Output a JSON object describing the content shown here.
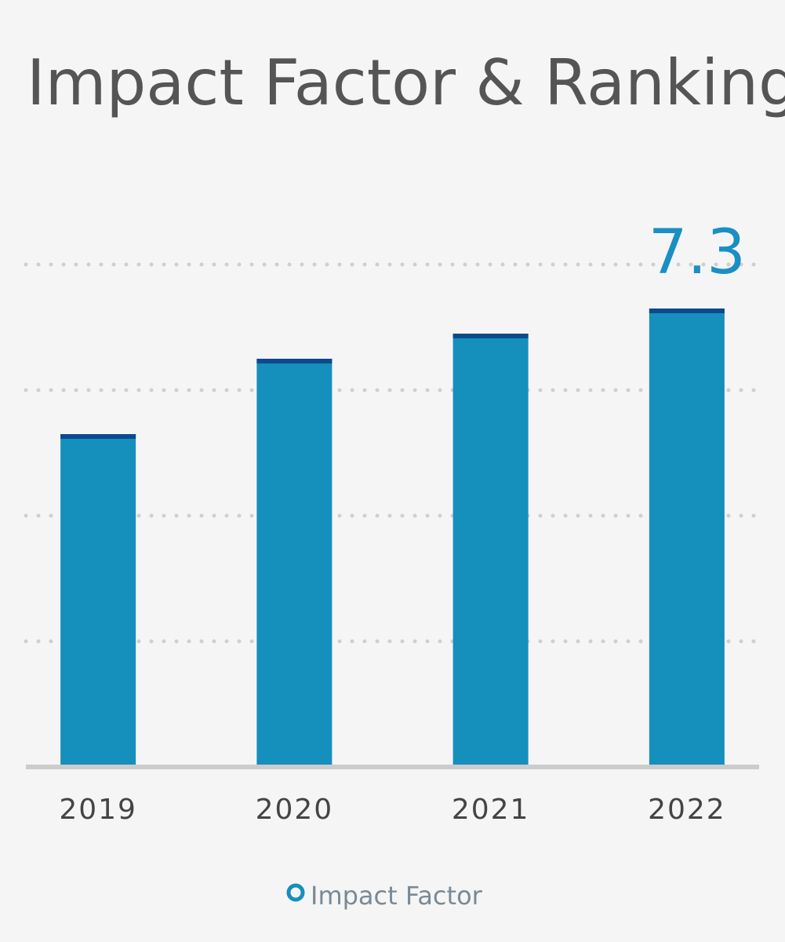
{
  "chart_data": {
    "type": "bar",
    "title": "Impact Factor & Ranking",
    "categories": [
      "2019",
      "2020",
      "2021",
      "2022"
    ],
    "series": [
      {
        "name": "Impact Factor",
        "color": "#158fbb",
        "values": [
          5.3,
          6.5,
          6.9,
          7.3
        ]
      }
    ],
    "value_labels": [
      null,
      null,
      null,
      "7.3"
    ],
    "ylim": [
      0,
      8
    ],
    "yticks": [
      2,
      4,
      6,
      8
    ],
    "grid": true
  }
}
